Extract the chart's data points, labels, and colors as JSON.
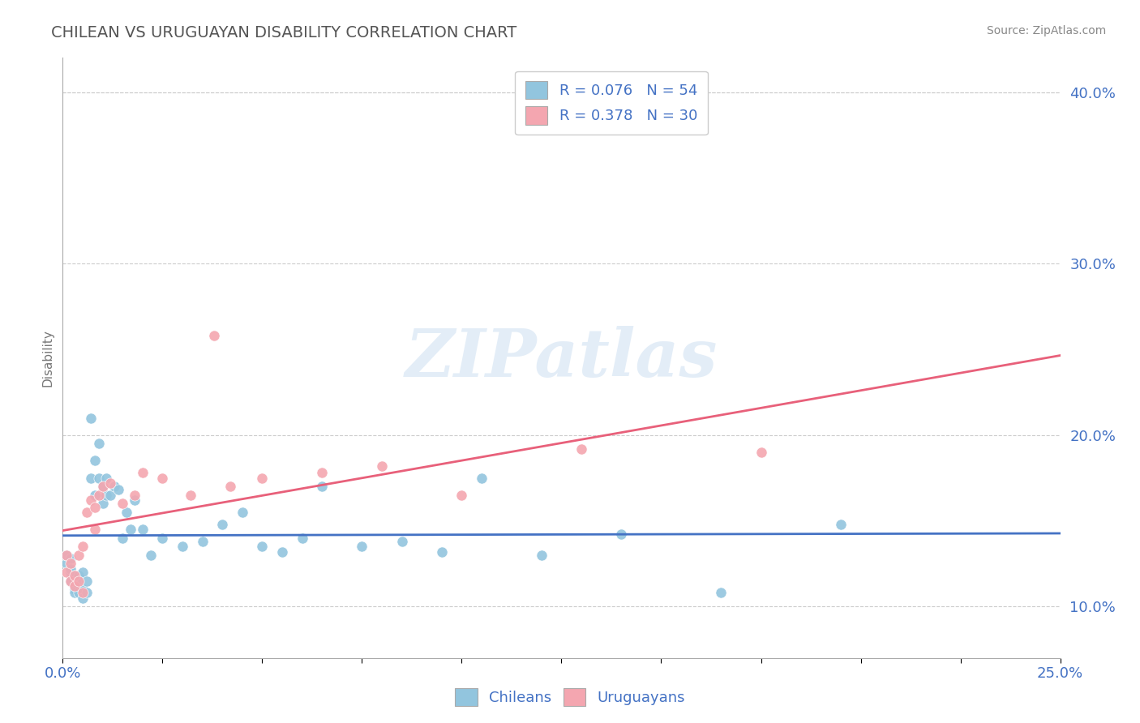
{
  "title": "CHILEAN VS URUGUAYAN DISABILITY CORRELATION CHART",
  "source_text": "Source: ZipAtlas.com",
  "ylabel": "Disability",
  "xlim": [
    0.0,
    0.25
  ],
  "ylim": [
    0.07,
    0.42
  ],
  "ytick_vals": [
    0.1,
    0.2,
    0.3,
    0.4
  ],
  "ytick_labels": [
    "10.0%",
    "20.0%",
    "30.0%",
    "40.0%"
  ],
  "xtick_vals": [
    0.0,
    0.025,
    0.05,
    0.075,
    0.1,
    0.125,
    0.15,
    0.175,
    0.2,
    0.225,
    0.25
  ],
  "legend_line1": "R = 0.076   N = 54",
  "legend_line2": "R = 0.378   N = 30",
  "blue_color": "#92C5DE",
  "pink_color": "#F4A6B0",
  "blue_line_color": "#4472C4",
  "pink_line_color": "#E8607A",
  "watermark": "ZIPatlas",
  "chilean_x": [
    0.001,
    0.001,
    0.002,
    0.002,
    0.002,
    0.002,
    0.003,
    0.003,
    0.003,
    0.003,
    0.004,
    0.004,
    0.004,
    0.005,
    0.005,
    0.005,
    0.006,
    0.006,
    0.007,
    0.007,
    0.008,
    0.008,
    0.009,
    0.009,
    0.01,
    0.01,
    0.011,
    0.011,
    0.012,
    0.013,
    0.014,
    0.015,
    0.016,
    0.017,
    0.018,
    0.02,
    0.022,
    0.025,
    0.03,
    0.035,
    0.04,
    0.045,
    0.05,
    0.055,
    0.06,
    0.065,
    0.075,
    0.085,
    0.095,
    0.105,
    0.12,
    0.14,
    0.165,
    0.195
  ],
  "chilean_y": [
    0.125,
    0.13,
    0.12,
    0.128,
    0.122,
    0.115,
    0.118,
    0.112,
    0.11,
    0.108,
    0.118,
    0.115,
    0.108,
    0.12,
    0.11,
    0.105,
    0.115,
    0.108,
    0.175,
    0.21,
    0.165,
    0.185,
    0.175,
    0.195,
    0.17,
    0.16,
    0.175,
    0.165,
    0.165,
    0.17,
    0.168,
    0.14,
    0.155,
    0.145,
    0.162,
    0.145,
    0.13,
    0.14,
    0.135,
    0.138,
    0.148,
    0.155,
    0.135,
    0.132,
    0.14,
    0.17,
    0.135,
    0.138,
    0.132,
    0.175,
    0.13,
    0.142,
    0.108,
    0.148
  ],
  "uruguayan_x": [
    0.001,
    0.001,
    0.002,
    0.002,
    0.003,
    0.003,
    0.004,
    0.004,
    0.005,
    0.005,
    0.006,
    0.007,
    0.008,
    0.008,
    0.009,
    0.01,
    0.012,
    0.015,
    0.018,
    0.02,
    0.025,
    0.032,
    0.038,
    0.042,
    0.05,
    0.065,
    0.08,
    0.1,
    0.13,
    0.175
  ],
  "uruguayan_y": [
    0.13,
    0.12,
    0.125,
    0.115,
    0.118,
    0.112,
    0.13,
    0.115,
    0.135,
    0.108,
    0.155,
    0.162,
    0.145,
    0.158,
    0.165,
    0.17,
    0.172,
    0.16,
    0.165,
    0.178,
    0.175,
    0.165,
    0.258,
    0.17,
    0.175,
    0.178,
    0.182,
    0.165,
    0.192,
    0.19
  ],
  "title_color": "#555555",
  "axis_color": "#4472C4",
  "source_color": "#888888",
  "grid_color": "#CCCCCC",
  "background_color": "#FFFFFF"
}
